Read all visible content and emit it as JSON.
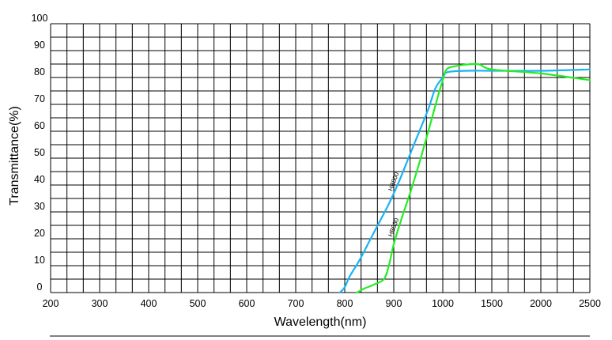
{
  "chart_data": {
    "type": "line",
    "title": "",
    "xlabel": "Wavelength(nm)",
    "ylabel": "Transmittance(%)",
    "x_tick_labels": [
      "200",
      "300",
      "400",
      "500",
      "600",
      "700",
      "800",
      "900",
      "1000",
      "1500",
      "2000",
      "2500"
    ],
    "x_tick_values": [
      200,
      300,
      400,
      500,
      600,
      700,
      800,
      900,
      1000,
      1500,
      2000,
      2500
    ],
    "x_scale": "piecewise-linear: 100 nm per major division from 200 to 1000, 500 nm per major division from 1000 to 2500",
    "y_tick_labels": [
      "0",
      "10",
      "20",
      "30",
      "40",
      "50",
      "60",
      "70",
      "80",
      "90",
      "100"
    ],
    "ylim": [
      0,
      100
    ],
    "grid": true,
    "legend": "none; series labels written along curves",
    "series": [
      {
        "name": "HB800",
        "color": "#1ab3f0",
        "points": [
          [
            790,
            0
          ],
          [
            800,
            2
          ],
          [
            810,
            6
          ],
          [
            830,
            12
          ],
          [
            850,
            19
          ],
          [
            870,
            26
          ],
          [
            890,
            33
          ],
          [
            910,
            41
          ],
          [
            930,
            50
          ],
          [
            950,
            59
          ],
          [
            970,
            68
          ],
          [
            985,
            76
          ],
          [
            1000,
            80
          ],
          [
            1050,
            82
          ],
          [
            1250,
            82.5
          ],
          [
            1500,
            82.5
          ],
          [
            2000,
            82.5
          ],
          [
            2500,
            83
          ]
        ]
      },
      {
        "name": "HB830",
        "color": "#22ee22",
        "points": [
          [
            825,
            0
          ],
          [
            840,
            1.5
          ],
          [
            860,
            3
          ],
          [
            880,
            5
          ],
          [
            890,
            10
          ],
          [
            900,
            18
          ],
          [
            915,
            27
          ],
          [
            935,
            38
          ],
          [
            955,
            50
          ],
          [
            975,
            63
          ],
          [
            990,
            73
          ],
          [
            1000,
            79
          ],
          [
            1030,
            82.5
          ],
          [
            1100,
            84
          ],
          [
            1350,
            85
          ],
          [
            1500,
            83
          ],
          [
            2000,
            81.5
          ],
          [
            2500,
            79
          ]
        ]
      }
    ]
  }
}
